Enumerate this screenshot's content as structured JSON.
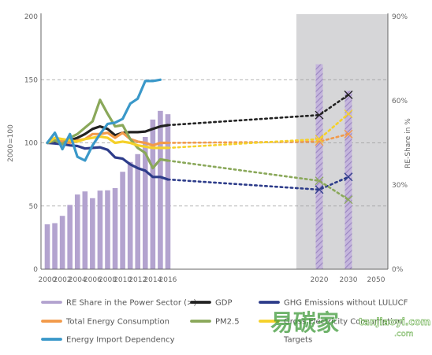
{
  "chart_data": {
    "type": "bar+line",
    "y_left": {
      "label": "2000=100",
      "ticks": [
        0,
        50,
        100,
        150,
        200
      ],
      "range": [
        0,
        200
      ]
    },
    "y_right": {
      "label": "RE-Share in %",
      "ticks": [
        "0%",
        "30%",
        "60%",
        "90%"
      ],
      "values": [
        0,
        30,
        60,
        90
      ],
      "range": [
        0,
        90
      ]
    },
    "x_ticks": [
      "2000",
      "2002",
      "2004",
      "2006",
      "2008",
      "2010",
      "2012",
      "2014",
      "2016",
      "2020",
      "2030",
      "2050"
    ],
    "shaded_region_label": "Targets",
    "re_share": {
      "name": "RE Share in the Power Sector (>)",
      "color": "#b3a3cf",
      "historic": [
        {
          "x": "2000",
          "y": 16
        },
        {
          "x": "2001",
          "y": 16.4
        },
        {
          "x": "2002",
          "y": 19
        },
        {
          "x": "2003",
          "y": 22.9
        },
        {
          "x": "2004",
          "y": 26.6
        },
        {
          "x": "2005",
          "y": 27.7
        },
        {
          "x": "2006",
          "y": 25.3
        },
        {
          "x": "2007",
          "y": 28
        },
        {
          "x": "2008",
          "y": 28.1
        },
        {
          "x": "2009",
          "y": 28.9
        },
        {
          "x": "2010",
          "y": 34.7
        },
        {
          "x": "2011",
          "y": 38.2
        },
        {
          "x": "2012",
          "y": 41
        },
        {
          "x": "2013",
          "y": 47.1
        },
        {
          "x": "2014",
          "y": 53.3
        },
        {
          "x": "2015",
          "y": 56.4
        },
        {
          "x": "2016",
          "y": 55.2
        }
      ],
      "targets": [
        {
          "x": "2020",
          "y": 73
        },
        {
          "x": "2030",
          "y": 63.5
        }
      ]
    },
    "series": [
      {
        "name": "GDP",
        "color": "#222222",
        "values": [
          [
            2000,
            100
          ],
          [
            2001,
            100.5
          ],
          [
            2002,
            101
          ],
          [
            2003,
            102
          ],
          [
            2004,
            104
          ],
          [
            2005,
            107
          ],
          [
            2006,
            111
          ],
          [
            2007,
            113
          ],
          [
            2008,
            111
          ],
          [
            2009,
            106
          ],
          [
            2010,
            108
          ],
          [
            2011,
            108.5
          ],
          [
            2012,
            108.5
          ],
          [
            2013,
            109
          ],
          [
            2014,
            111
          ],
          [
            2015,
            113
          ],
          [
            2016,
            114
          ]
        ],
        "projection": [
          [
            2016,
            114
          ],
          [
            2020,
            122
          ],
          [
            2030,
            138
          ]
        ]
      },
      {
        "name": "GHG Emissions without LULUCF",
        "color": "#2d3c8a",
        "values": [
          [
            2000,
            100
          ],
          [
            2001,
            99.5
          ],
          [
            2002,
            99
          ],
          [
            2003,
            98
          ],
          [
            2004,
            97.5
          ],
          [
            2005,
            95.5
          ],
          [
            2006,
            96
          ],
          [
            2007,
            96.5
          ],
          [
            2008,
            94.5
          ],
          [
            2009,
            88.5
          ],
          [
            2010,
            87.5
          ],
          [
            2011,
            83
          ],
          [
            2012,
            80
          ],
          [
            2013,
            78
          ],
          [
            2014,
            73
          ],
          [
            2015,
            73
          ],
          [
            2016,
            71
          ]
        ],
        "projection": [
          [
            2016,
            71
          ],
          [
            2020,
            63
          ],
          [
            2030,
            73
          ]
        ]
      },
      {
        "name": "Total Energy Consumption",
        "color": "#f29a4a",
        "values": [
          [
            2000,
            100
          ],
          [
            2001,
            102
          ],
          [
            2002,
            101
          ],
          [
            2003,
            100
          ],
          [
            2004,
            102
          ],
          [
            2005,
            103
          ],
          [
            2006,
            107
          ],
          [
            2007,
            107
          ],
          [
            2008,
            108
          ],
          [
            2009,
            104
          ],
          [
            2010,
            108
          ],
          [
            2011,
            103
          ],
          [
            2012,
            101
          ],
          [
            2013,
            100
          ],
          [
            2014,
            98
          ],
          [
            2015,
            100
          ],
          [
            2016,
            100
          ]
        ],
        "projection": [
          [
            2016,
            100
          ],
          [
            2020,
            101
          ],
          [
            2030,
            107
          ]
        ]
      },
      {
        "name": "PM2.5",
        "color": "#8aa85a",
        "values": [
          [
            2000,
            100
          ],
          [
            2001,
            102
          ],
          [
            2002,
            99
          ],
          [
            2003,
            104
          ],
          [
            2004,
            107
          ],
          [
            2005,
            112
          ],
          [
            2006,
            117
          ],
          [
            2007,
            134
          ],
          [
            2008,
            123
          ],
          [
            2009,
            113
          ],
          [
            2010,
            114
          ],
          [
            2011,
            103
          ],
          [
            2012,
            96
          ],
          [
            2013,
            92
          ],
          [
            2014,
            80
          ],
          [
            2015,
            87
          ],
          [
            2016,
            86
          ]
        ],
        "projection": [
          [
            2016,
            86
          ],
          [
            2020,
            70
          ],
          [
            2030,
            55
          ]
        ]
      },
      {
        "name": "Gross Electricity Consumption",
        "color": "#f5d12a",
        "values": [
          [
            2000,
            100
          ],
          [
            2001,
            104
          ],
          [
            2002,
            103
          ],
          [
            2003,
            102
          ],
          [
            2004,
            101
          ],
          [
            2005,
            103
          ],
          [
            2006,
            104
          ],
          [
            2007,
            105
          ],
          [
            2008,
            104
          ],
          [
            2009,
            100
          ],
          [
            2010,
            101
          ],
          [
            2011,
            100
          ],
          [
            2012,
            98
          ],
          [
            2013,
            97
          ],
          [
            2014,
            96
          ],
          [
            2015,
            96
          ],
          [
            2016,
            96
          ]
        ],
        "projection": [
          [
            2016,
            96
          ],
          [
            2020,
            103
          ],
          [
            2030,
            123
          ]
        ]
      },
      {
        "name": "Energy Import Dependency",
        "color": "#3a98c9",
        "values": [
          [
            2000,
            100
          ],
          [
            2001,
            108
          ],
          [
            2002,
            95
          ],
          [
            2003,
            107
          ],
          [
            2004,
            89
          ],
          [
            2005,
            86
          ],
          [
            2006,
            98
          ],
          [
            2007,
            107
          ],
          [
            2008,
            115
          ],
          [
            2009,
            116
          ],
          [
            2010,
            119
          ],
          [
            2011,
            131
          ],
          [
            2012,
            135
          ],
          [
            2013,
            149
          ],
          [
            2014,
            149
          ],
          [
            2015,
            150
          ]
        ],
        "projection": []
      }
    ],
    "legend": [
      "RE Share in the Power Sector (>)",
      "GDP",
      "GHG Emissions without LULUCF",
      "Total Energy Consumption",
      "PM2.5",
      "Gross Electricity Consumption",
      "Energy Import Dependency",
      "Targets"
    ],
    "grid": "dashed reference lines at 50, 100, 150"
  },
  "watermark": {
    "text_cn": "易碳家",
    "text_url": "tanjiaoyi.com",
    "text_url_sub": ".com"
  }
}
